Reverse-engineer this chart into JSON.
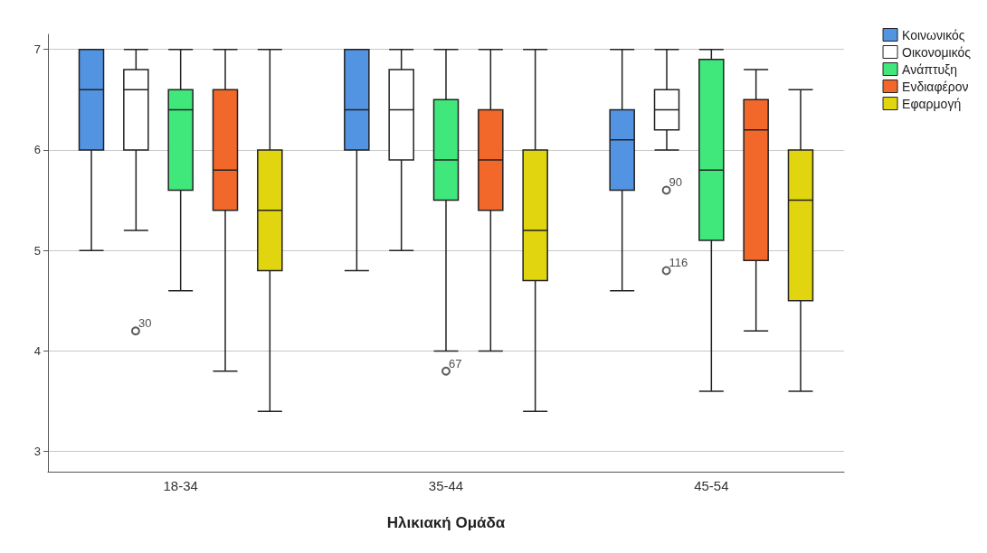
{
  "chart_data": {
    "type": "box",
    "xlabel": "Ηλικιακή Ομάδα",
    "categories": [
      "18-34",
      "35-44",
      "45-54"
    ],
    "ylim": [
      2.8,
      7.15
    ],
    "yticks": [
      3,
      4,
      5,
      6,
      7
    ],
    "grid": "y",
    "legend": "top right",
    "series": [
      {
        "name": "Κοινωνικός",
        "color": "#5294e2",
        "boxes": [
          {
            "low": 5,
            "q1": 6,
            "median": 6.6,
            "q3": 7,
            "high": 7
          },
          {
            "low": 4.8,
            "q1": 6,
            "median": 6.4,
            "q3": 7,
            "high": 7
          },
          {
            "low": 4.6,
            "q1": 5.6,
            "median": 6.1,
            "q3": 6.4,
            "high": 7
          }
        ]
      },
      {
        "name": "Οικονομικός",
        "color": "#ffffff",
        "boxes": [
          {
            "low": 5.2,
            "q1": 6,
            "median": 6.6,
            "q3": 6.8,
            "high": 7,
            "outliers": [
              4.2
            ]
          },
          {
            "low": 5,
            "q1": 5.9,
            "median": 6.4,
            "q3": 6.8,
            "high": 7
          },
          {
            "low": 6,
            "q1": 6.2,
            "median": 6.4,
            "q3": 6.6,
            "high": 7,
            "outliers": [
              5.6,
              4.8
            ]
          }
        ]
      },
      {
        "name": "Ανάπτυξη",
        "color": "#40e87c",
        "boxes": [
          {
            "low": 4.6,
            "q1": 5.6,
            "median": 6.4,
            "q3": 6.6,
            "high": 7
          },
          {
            "low": 4,
            "q1": 5.5,
            "median": 5.9,
            "q3": 6.5,
            "high": 7,
            "outliers": [
              3.8
            ]
          },
          {
            "low": 3.6,
            "q1": 5.1,
            "median": 5.8,
            "q3": 6.9,
            "high": 7
          }
        ]
      },
      {
        "name": "Ενδιαφέρον",
        "color": "#f2672a",
        "boxes": [
          {
            "low": 3.8,
            "q1": 5.4,
            "median": 5.8,
            "q3": 6.6,
            "high": 7
          },
          {
            "low": 4,
            "q1": 5.4,
            "median": 5.9,
            "q3": 6.4,
            "high": 7
          },
          {
            "low": 4.2,
            "q1": 4.9,
            "median": 6.2,
            "q3": 6.5,
            "high": 6.8
          }
        ]
      },
      {
        "name": "Εφαρμογή",
        "color": "#e0d50e",
        "boxes": [
          {
            "low": 3.4,
            "q1": 4.8,
            "median": 5.4,
            "q3": 6,
            "high": 7
          },
          {
            "low": 3.4,
            "q1": 4.7,
            "median": 5.2,
            "q3": 6,
            "high": 7
          },
          {
            "low": 3.6,
            "q1": 4.5,
            "median": 5.5,
            "q3": 6,
            "high": 6.6
          }
        ]
      }
    ],
    "annotations": [
      "30",
      "67",
      "90",
      "116"
    ]
  }
}
